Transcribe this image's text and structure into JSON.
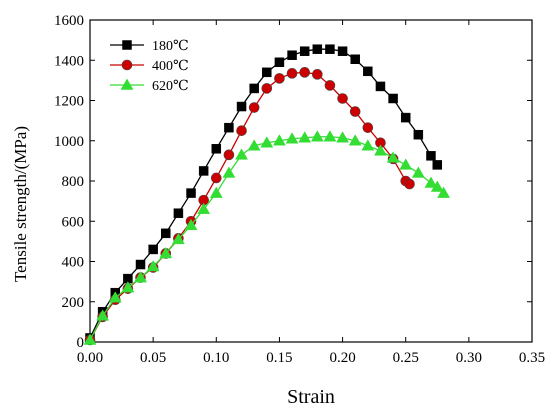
{
  "chart_data": {
    "type": "line",
    "xlabel": "Strain",
    "ylabel": "Tensile strength/(MPa)",
    "xlim": [
      0,
      0.35
    ],
    "ylim": [
      0,
      1600
    ],
    "xticks": [
      "0.00",
      "0.05",
      "0.10",
      "0.15",
      "0.20",
      "0.25",
      "0.30",
      "0.35"
    ],
    "yticks": [
      "0",
      "200",
      "400",
      "600",
      "800",
      "1000",
      "1200",
      "1400",
      "1600"
    ],
    "legend_position": "top-left",
    "grid": false,
    "series": [
      {
        "name": "180℃",
        "color": "#000000",
        "marker": "square",
        "x": [
          0.0,
          0.01,
          0.02,
          0.03,
          0.04,
          0.05,
          0.06,
          0.07,
          0.08,
          0.09,
          0.1,
          0.11,
          0.12,
          0.13,
          0.14,
          0.15,
          0.16,
          0.17,
          0.18,
          0.19,
          0.2,
          0.21,
          0.22,
          0.23,
          0.24,
          0.25,
          0.26,
          0.27,
          0.275
        ],
        "y": [
          20,
          150,
          245,
          315,
          385,
          460,
          540,
          640,
          740,
          850,
          960,
          1065,
          1170,
          1260,
          1340,
          1390,
          1425,
          1445,
          1455,
          1455,
          1445,
          1405,
          1345,
          1270,
          1210,
          1115,
          1030,
          925,
          880
        ]
      },
      {
        "name": "400℃",
        "color": "#cc0000",
        "marker": "circle",
        "x": [
          0.0,
          0.01,
          0.02,
          0.03,
          0.04,
          0.05,
          0.06,
          0.07,
          0.08,
          0.09,
          0.1,
          0.11,
          0.12,
          0.13,
          0.14,
          0.15,
          0.16,
          0.17,
          0.18,
          0.19,
          0.2,
          0.21,
          0.22,
          0.23,
          0.24,
          0.25,
          0.253
        ],
        "y": [
          10,
          125,
          210,
          265,
          320,
          370,
          440,
          515,
          600,
          705,
          815,
          930,
          1050,
          1165,
          1260,
          1310,
          1335,
          1340,
          1330,
          1275,
          1210,
          1145,
          1065,
          990,
          910,
          800,
          785
        ]
      },
      {
        "name": "620℃",
        "color": "#33dd33",
        "marker": "triangle",
        "x": [
          0.0,
          0.01,
          0.02,
          0.03,
          0.04,
          0.05,
          0.06,
          0.07,
          0.08,
          0.09,
          0.1,
          0.11,
          0.12,
          0.13,
          0.14,
          0.15,
          0.16,
          0.17,
          0.18,
          0.19,
          0.2,
          0.21,
          0.22,
          0.23,
          0.24,
          0.25,
          0.26,
          0.27,
          0.275,
          0.28
        ],
        "y": [
          10,
          130,
          220,
          270,
          320,
          375,
          440,
          510,
          580,
          660,
          740,
          840,
          930,
          975,
          990,
          1000,
          1010,
          1015,
          1020,
          1020,
          1015,
          1000,
          975,
          950,
          915,
          880,
          840,
          790,
          770,
          740
        ]
      }
    ]
  }
}
